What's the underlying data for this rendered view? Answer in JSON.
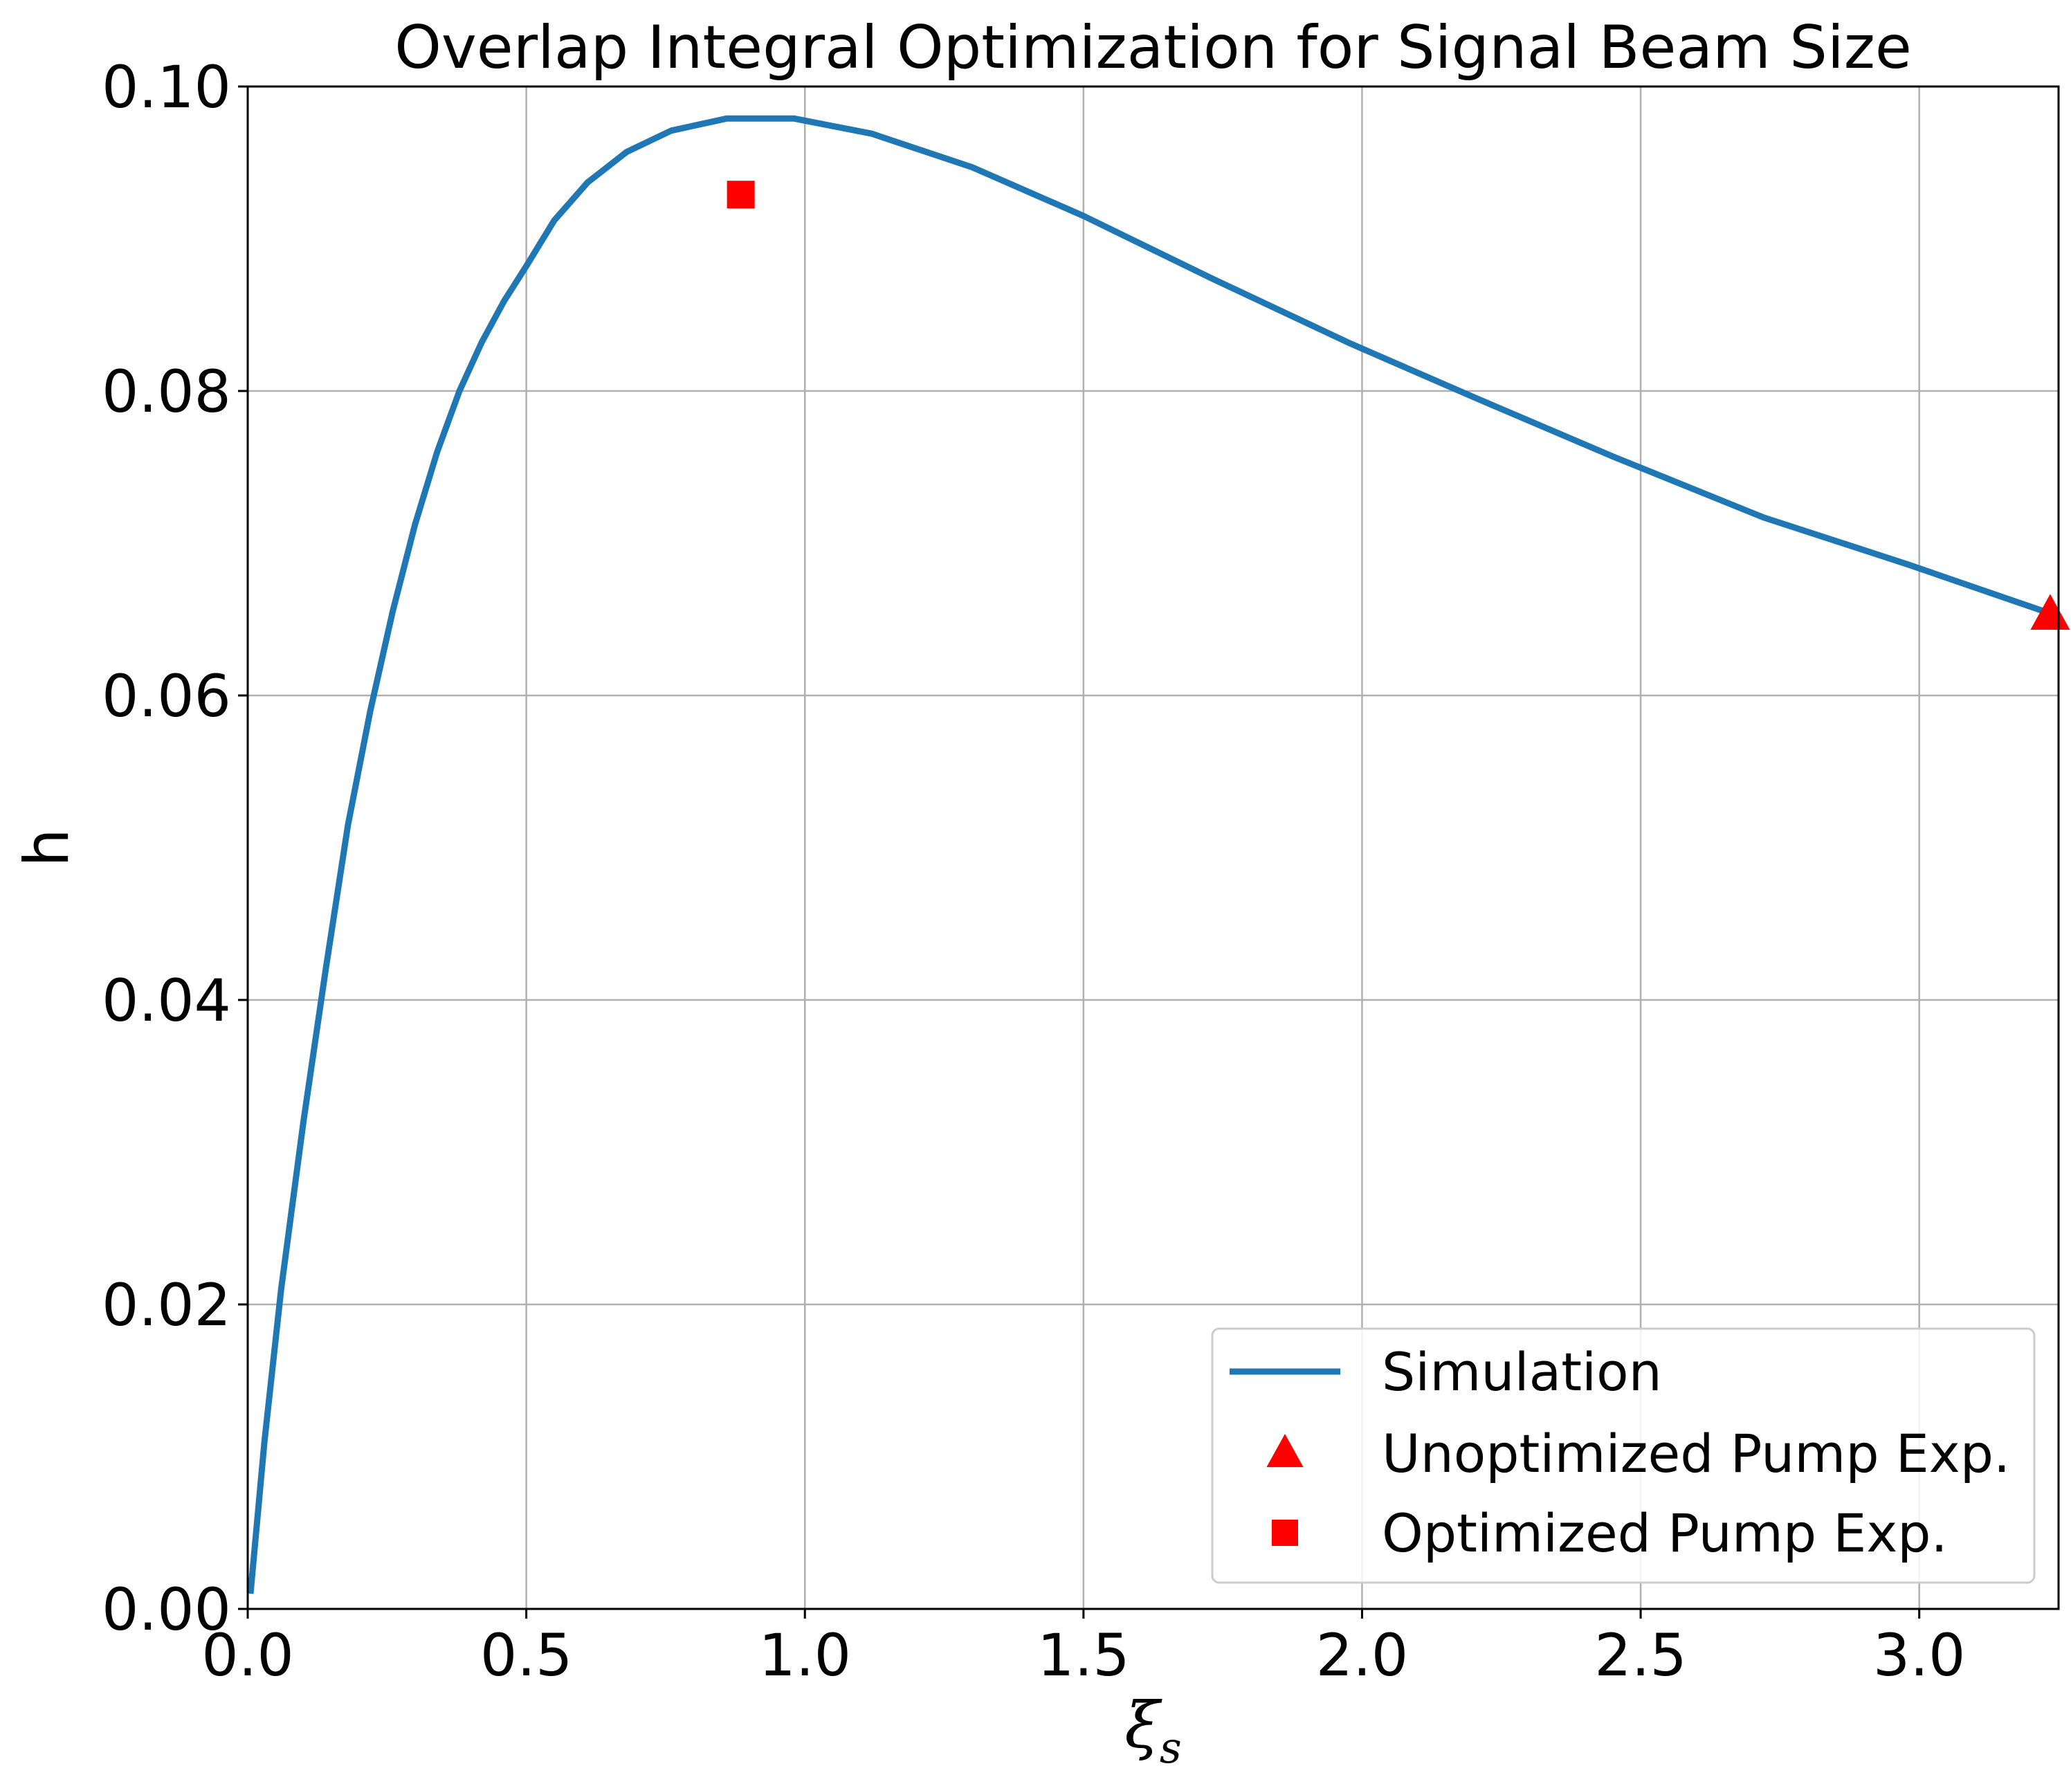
{
  "chart_data": {
    "type": "line",
    "title": "Overlap Integral Optimization for Signal Beam Size",
    "xlabel_main": "ξ",
    "xlabel_sub": "s",
    "ylabel": "h",
    "xlim": [
      0.0,
      3.25
    ],
    "ylim": [
      0.0,
      0.1
    ],
    "xticks": [
      0.0,
      0.5,
      1.0,
      1.5,
      2.0,
      2.5,
      3.0
    ],
    "xtick_labels": [
      "0.0",
      "0.5",
      "1.0",
      "1.5",
      "2.0",
      "2.5",
      "3.0"
    ],
    "yticks": [
      0.0,
      0.02,
      0.04,
      0.06,
      0.08,
      0.1
    ],
    "ytick_labels": [
      "0.00",
      "0.02",
      "0.04",
      "0.06",
      "0.08",
      "0.10"
    ],
    "grid": true,
    "legend_position": "lower-right",
    "series": [
      {
        "name": "Simulation",
        "kind": "line",
        "color": "#1f77b4",
        "x": [
          0.005,
          0.03,
          0.06,
          0.1,
          0.14,
          0.18,
          0.22,
          0.26,
          0.3,
          0.34,
          0.38,
          0.42,
          0.46,
          0.5,
          0.55,
          0.61,
          0.68,
          0.76,
          0.86,
          0.98,
          1.12,
          1.3,
          1.5,
          1.73,
          1.98,
          2.2,
          2.45,
          2.72,
          2.98,
          3.25
        ],
        "y": [
          0.001,
          0.011,
          0.021,
          0.032,
          0.042,
          0.0515,
          0.059,
          0.0655,
          0.0712,
          0.076,
          0.08,
          0.0832,
          0.0859,
          0.0882,
          0.0912,
          0.0937,
          0.0957,
          0.0971,
          0.0979,
          0.0979,
          0.0969,
          0.0947,
          0.0915,
          0.0874,
          0.0831,
          0.0796,
          0.0757,
          0.0717,
          0.0686,
          0.0652
        ]
      },
      {
        "name": "Unoptimized Pump Exp.",
        "kind": "marker",
        "marker": "triangle",
        "color": "#ff0000",
        "x": [
          3.235
        ],
        "y": [
          0.0653
        ]
      },
      {
        "name": "Optimized Pump Exp.",
        "kind": "marker",
        "marker": "square",
        "color": "#ff0000",
        "x": [
          0.885
        ],
        "y": [
          0.0929
        ]
      }
    ]
  }
}
